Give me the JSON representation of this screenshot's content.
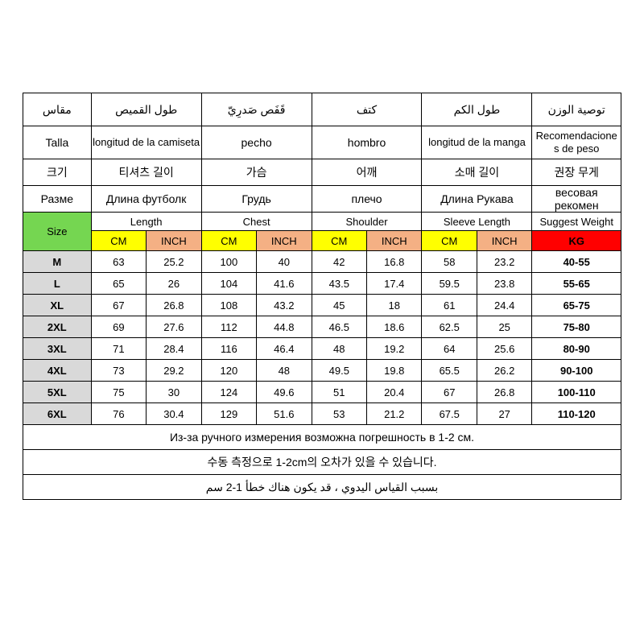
{
  "colors": {
    "border": "#000000",
    "size_bg": "#75d651",
    "cm_bg": "#ffff00",
    "inch_bg": "#f4b084",
    "kg_bg": "#ff0000",
    "label_bg": "#d9d9d9",
    "text": "#000000",
    "page_bg": "#ffffff"
  },
  "table": {
    "type": "table",
    "col_widths_pct": [
      10,
      8,
      8,
      8,
      8,
      8,
      8,
      8,
      8,
      16
    ],
    "lang_headers": {
      "arabic": [
        "مقاس",
        "طول القميص",
        "قَفَص صَدرِيّ",
        "كتف",
        "طول الكم",
        "توصية الوزن"
      ],
      "spanish": [
        "Talla",
        "longitud de la camiseta",
        "pecho",
        "hombro",
        "longitud de la manga",
        "Recomendacione s de peso"
      ],
      "korean": [
        "크기",
        "티셔츠 길이",
        "가슴",
        "어깨",
        "소매 길이",
        "권장 무게"
      ],
      "russian": [
        "Разме",
        "Длина футболк",
        "Грудь",
        "плечо",
        "Длина Рукава",
        "весовая рекомен"
      ]
    },
    "english_top": [
      "Length",
      "Chest",
      "Shoulder",
      "Sleeve Length",
      "Suggest Weight"
    ],
    "english_size": "Size",
    "unit_cm": "CM",
    "unit_inch": "INCH",
    "unit_kg": "KG",
    "rows": [
      {
        "size": "M",
        "length_cm": "63",
        "length_in": "25.2",
        "chest_cm": "100",
        "chest_in": "40",
        "shoulder_cm": "42",
        "shoulder_in": "16.8",
        "sleeve_cm": "58",
        "sleeve_in": "23.2",
        "weight": "40-55"
      },
      {
        "size": "L",
        "length_cm": "65",
        "length_in": "26",
        "chest_cm": "104",
        "chest_in": "41.6",
        "shoulder_cm": "43.5",
        "shoulder_in": "17.4",
        "sleeve_cm": "59.5",
        "sleeve_in": "23.8",
        "weight": "55-65"
      },
      {
        "size": "XL",
        "length_cm": "67",
        "length_in": "26.8",
        "chest_cm": "108",
        "chest_in": "43.2",
        "shoulder_cm": "45",
        "shoulder_in": "18",
        "sleeve_cm": "61",
        "sleeve_in": "24.4",
        "weight": "65-75"
      },
      {
        "size": "2XL",
        "length_cm": "69",
        "length_in": "27.6",
        "chest_cm": "112",
        "chest_in": "44.8",
        "shoulder_cm": "46.5",
        "shoulder_in": "18.6",
        "sleeve_cm": "62.5",
        "sleeve_in": "25",
        "weight": "75-80"
      },
      {
        "size": "3XL",
        "length_cm": "71",
        "length_in": "28.4",
        "chest_cm": "116",
        "chest_in": "46.4",
        "shoulder_cm": "48",
        "shoulder_in": "19.2",
        "sleeve_cm": "64",
        "sleeve_in": "25.6",
        "weight": "80-90"
      },
      {
        "size": "4XL",
        "length_cm": "73",
        "length_in": "29.2",
        "chest_cm": "120",
        "chest_in": "48",
        "shoulder_cm": "49.5",
        "shoulder_in": "19.8",
        "sleeve_cm": "65.5",
        "sleeve_in": "26.2",
        "weight": "90-100"
      },
      {
        "size": "5XL",
        "length_cm": "75",
        "length_in": "30",
        "chest_cm": "124",
        "chest_in": "49.6",
        "shoulder_cm": "51",
        "shoulder_in": "20.4",
        "sleeve_cm": "67",
        "sleeve_in": "26.8",
        "weight": "100-110"
      },
      {
        "size": "6XL",
        "length_cm": "76",
        "length_in": "30.4",
        "chest_cm": "129",
        "chest_in": "51.6",
        "shoulder_cm": "53",
        "shoulder_in": "21.2",
        "sleeve_cm": "67.5",
        "sleeve_in": "27",
        "weight": "110-120"
      }
    ],
    "notes": [
      "Из-за ручного измерения возможна погрешность в 1-2 см.",
      "수동 측정으로 1-2cm의 오차가 있을 수 있습니다.",
      "بسبب القياس اليدوي ، قد يكون هناك خطأ 1-2 سم"
    ]
  }
}
